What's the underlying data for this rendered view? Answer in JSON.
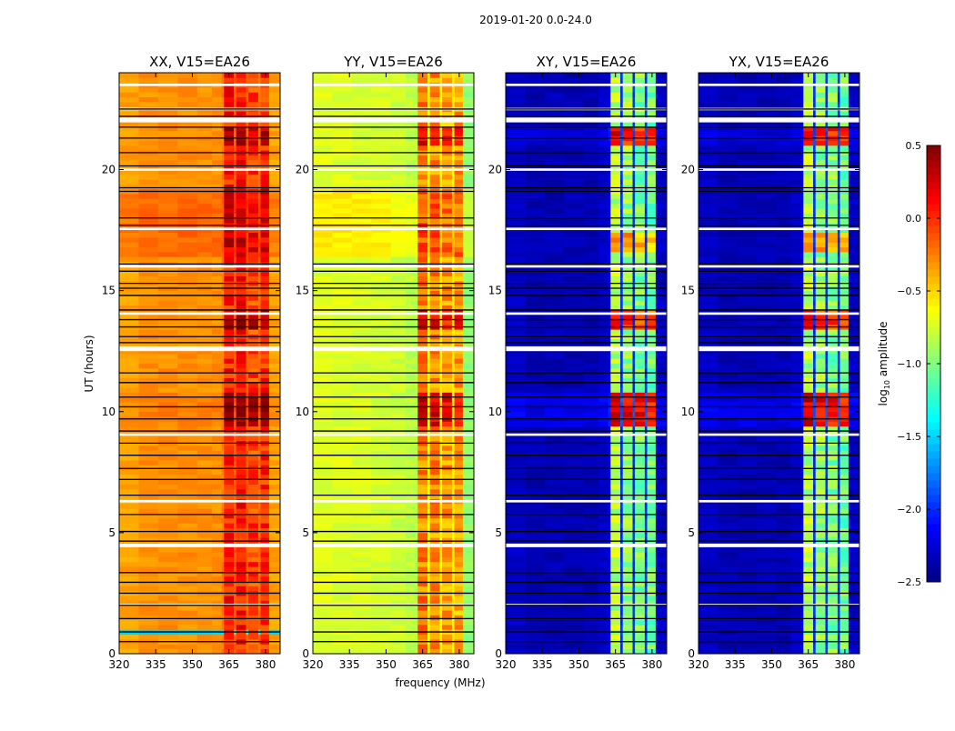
{
  "chart_data": {
    "type": "heatmap",
    "title": "2019-01-20 0.0-24.0",
    "xlabel": "frequency (MHz)",
    "ylabel": "UT (hours)",
    "xlim": [
      320,
      386
    ],
    "ylim": [
      0,
      24
    ],
    "xticks": [
      320,
      335,
      350,
      365,
      380
    ],
    "yticks": [
      0,
      5,
      10,
      15,
      20
    ],
    "colorbar": {
      "label_main": "log",
      "label_sub": "10",
      "label_rest": " amplitude",
      "range": [
        -2.5,
        0.5
      ],
      "ticks": [
        "0.5",
        "0.0",
        "−0.5",
        "−1.0",
        "−1.5",
        "−2.0",
        "−2.5"
      ],
      "tick_values": [
        0.5,
        0.0,
        -0.5,
        -1.0,
        -1.5,
        -2.0,
        -2.5
      ],
      "colormap": "jet"
    },
    "time_step_hours": 0.2,
    "freq_bin_edges": [
      320,
      328,
      336,
      344,
      352,
      358,
      362,
      363,
      367,
      368,
      372,
      373,
      377,
      378,
      381.5,
      386
    ],
    "band_bins": [
      7,
      9,
      11,
      13
    ],
    "panels": [
      {
        "title": "XX, V15=EA26",
        "levels": [
          -0.35,
          -0.3,
          -0.3,
          -0.3,
          -0.3,
          -0.3,
          -0.25,
          0.05,
          -0.15,
          0.05,
          -0.15,
          -0.05,
          -0.2,
          0.0,
          -0.35
        ],
        "events": [
          {
            "ut": [
              9.3,
              10.7
            ],
            "band": 0.45,
            "base": 0.05
          },
          {
            "ut": [
              13.3,
              14.1
            ],
            "band": 0.35,
            "base": 0.0
          },
          {
            "ut": [
              16.4,
              19.2
            ],
            "band": 0.2,
            "base": 0.12
          },
          {
            "ut": [
              20.9,
              21.8
            ],
            "band": 0.35,
            "base": 0.0
          },
          {
            "ut": [
              0.8,
              0.95
            ],
            "band": 0.0,
            "base": -1.2
          }
        ]
      },
      {
        "title": "YY, V15=EA26",
        "levels": [
          -0.72,
          -0.72,
          -0.74,
          -0.75,
          -0.78,
          -0.82,
          -0.85,
          -0.25,
          -0.6,
          -0.3,
          -0.6,
          -0.35,
          -0.6,
          -0.35,
          -0.95
        ],
        "events": [
          {
            "ut": [
              9.3,
              10.7
            ],
            "band": 0.5,
            "base": 0.0
          },
          {
            "ut": [
              13.3,
              14.1
            ],
            "band": 0.45,
            "base": 0.0
          },
          {
            "ut": [
              16.4,
              19.2
            ],
            "band": 0.15,
            "base": 0.15
          },
          {
            "ut": [
              20.9,
              21.8
            ],
            "band": 0.45,
            "base": 0.0
          }
        ]
      },
      {
        "title": "XY, V15=EA26",
        "levels": [
          -2.3,
          -2.35,
          -2.35,
          -2.35,
          -2.35,
          -2.3,
          -2.2,
          -0.85,
          -2.0,
          -0.95,
          -2.0,
          -1.0,
          -2.0,
          -1.05,
          -2.3
        ],
        "events": [
          {
            "ut": [
              9.3,
              10.7
            ],
            "band": 1.1,
            "base": 0.15
          },
          {
            "ut": [
              13.3,
              14.1
            ],
            "band": 0.9,
            "base": 0.0
          },
          {
            "ut": [
              16.6,
              17.4
            ],
            "band": 0.6,
            "base": 0.0
          },
          {
            "ut": [
              20.9,
              21.8
            ],
            "band": 1.0,
            "base": 0.1
          },
          {
            "ut": [
              12.9,
              13.05
            ],
            "band": 0.0,
            "base": 0.9
          }
        ]
      },
      {
        "title": "YX, V15=EA26",
        "levels": [
          -2.3,
          -2.35,
          -2.35,
          -2.35,
          -2.35,
          -2.3,
          -2.2,
          -0.85,
          -2.0,
          -0.95,
          -2.0,
          -1.0,
          -2.0,
          -1.05,
          -2.3
        ],
        "events": [
          {
            "ut": [
              9.3,
              10.7
            ],
            "band": 1.1,
            "base": 0.15
          },
          {
            "ut": [
              13.3,
              14.1
            ],
            "band": 0.9,
            "base": 0.0
          },
          {
            "ut": [
              16.6,
              17.4
            ],
            "band": 0.6,
            "base": 0.0
          },
          {
            "ut": [
              20.9,
              21.8
            ],
            "band": 1.0,
            "base": 0.1
          },
          {
            "ut": [
              12.9,
              13.05
            ],
            "band": 0.0,
            "base": 0.9
          }
        ]
      }
    ],
    "flagged_ut": [
      [
        23.45,
        23.55
      ],
      [
        22.45,
        22.55
      ],
      [
        21.95,
        22.15
      ],
      [
        19.95,
        20.05
      ],
      [
        17.5,
        17.6
      ],
      [
        15.95,
        16.05
      ],
      [
        14.0,
        14.1
      ],
      [
        12.5,
        12.7
      ],
      [
        9.0,
        9.1
      ],
      [
        6.25,
        6.35
      ],
      [
        4.4,
        4.55
      ],
      [
        2.0,
        2.06
      ]
    ],
    "scan_boundaries_ut": [
      22.5,
      22.2,
      21.75,
      21.3,
      20.7,
      20.15,
      19.25,
      19.1,
      18.0,
      17.7,
      16.1,
      15.8,
      15.3,
      15.1,
      14.8,
      14.2,
      13.8,
      13.5,
      13.1,
      12.85,
      11.6,
      11.2,
      10.6,
      10.2,
      9.7,
      9.2,
      8.7,
      8.2,
      7.65,
      7.2,
      6.55,
      5.75,
      5.05,
      4.65,
      3.35,
      2.95,
      2.5,
      2.0,
      1.45,
      0.9,
      0.5
    ]
  }
}
